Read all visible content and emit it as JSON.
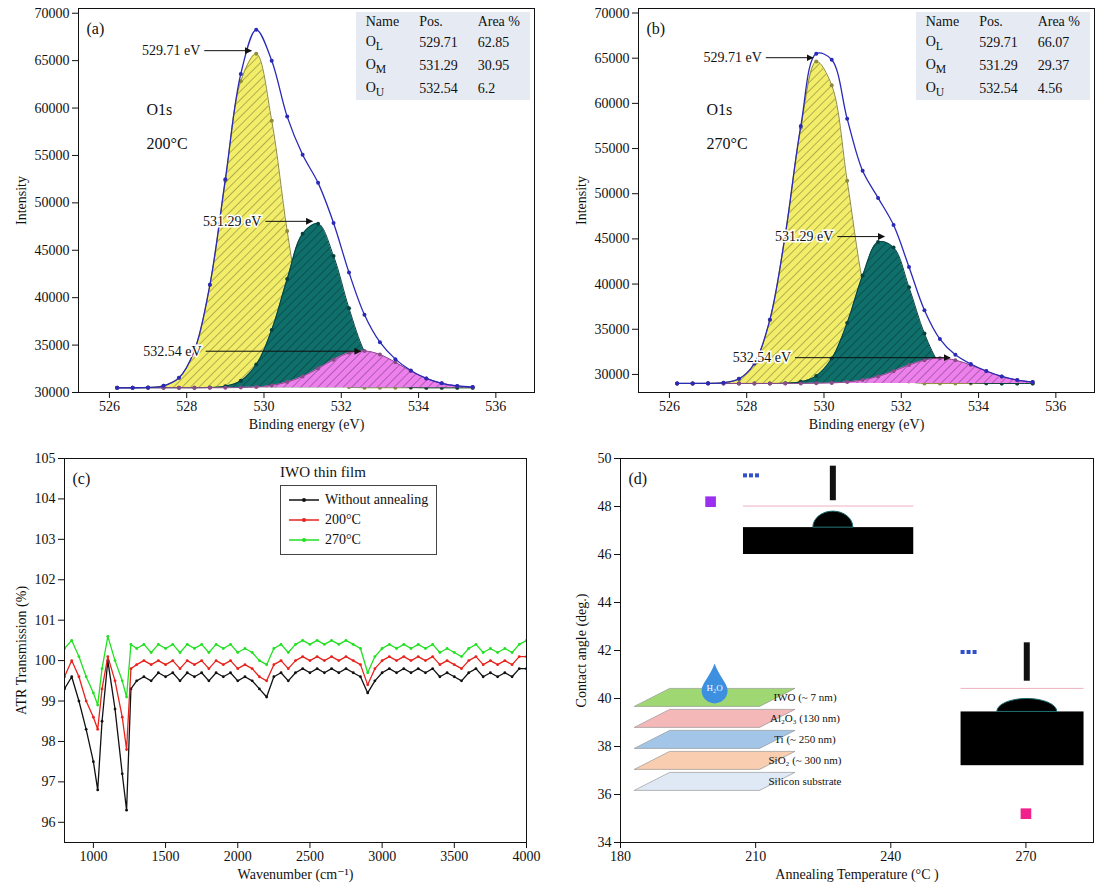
{
  "chart_data": [
    {
      "type": "area",
      "panel_label": "(a)",
      "labels": [
        "O1s",
        "200°C"
      ],
      "x_label": "Binding energy (eV)",
      "y_label": "Intensity",
      "xlim": [
        525.2,
        537
      ],
      "xticks": [
        526,
        528,
        530,
        532,
        534,
        536
      ],
      "ylim": [
        30000,
        70500
      ],
      "yticks": [
        30000,
        35000,
        40000,
        45000,
        50000,
        55000,
        60000,
        65000,
        70000
      ],
      "baseline": 30500,
      "x": [
        526.2,
        526.6,
        527.0,
        527.4,
        527.8,
        528.2,
        528.6,
        529.0,
        529.4,
        529.8,
        530.2,
        530.6,
        531.0,
        531.4,
        531.8,
        532.2,
        532.6,
        533.0,
        533.4,
        533.8,
        534.2,
        534.6,
        535.0,
        535.4
      ],
      "series": [
        {
          "name": "OL",
          "type": "area",
          "color": "#f3ee6a",
          "marker": "circle",
          "values": [
            30500,
            30500,
            30530,
            30710,
            31550,
            34440,
            41330,
            52330,
            62840,
            65720,
            58660,
            47040,
            37640,
            32760,
            31030,
            30590,
            30500,
            30500,
            30500,
            30500,
            30500,
            30500,
            30500,
            30500
          ]
        },
        {
          "name": "OM",
          "type": "area",
          "color": "#0f6f6b",
          "marker": "circle",
          "values": [
            30500,
            30500,
            30500,
            30500,
            30500,
            30500,
            30530,
            30670,
            31230,
            32940,
            36590,
            41960,
            46740,
            47810,
            44390,
            38880,
            34310,
            31800,
            30830,
            30560,
            30500,
            30500,
            30500,
            30500
          ]
        },
        {
          "name": "OU",
          "type": "area",
          "color": "#ee80ee",
          "marker": "circle",
          "values": [
            30500,
            30500,
            30500,
            30500,
            30500,
            30500,
            30500,
            30500,
            30530,
            30590,
            30750,
            31100,
            31690,
            32540,
            33460,
            34180,
            34390,
            34010,
            33190,
            32260,
            31480,
            30970,
            30690,
            30570
          ]
        },
        {
          "type": "line",
          "color": "#2a2ab8",
          "marker": "circle",
          "values": [
            30500,
            30500,
            30530,
            30710,
            31550,
            34440,
            41360,
            52500,
            63600,
            68250,
            65000,
            59100,
            55070,
            52110,
            47880,
            42650,
            38200,
            35310,
            33520,
            32320,
            31480,
            30970,
            30690,
            30570
          ]
        }
      ],
      "annotations": [
        {
          "text": "529.71 eV",
          "x": 529.71,
          "y": 66000
        },
        {
          "text": "531.29 eV",
          "x": 531.29,
          "y": 48000
        },
        {
          "text": "532.54 eV",
          "x": 532.54,
          "y": 34300
        }
      ],
      "table": {
        "columns": [
          "Name",
          "Pos.",
          "Area %"
        ],
        "rows": [
          [
            "OL",
            529.71,
            62.85
          ],
          [
            "OM",
            531.29,
            30.95
          ],
          [
            "OU",
            532.54,
            6.2
          ]
        ]
      }
    },
    {
      "type": "area",
      "panel_label": "(b)",
      "labels": [
        "O1s",
        "270°C"
      ],
      "x_label": "Binding energy (eV)",
      "y_label": "Intensity",
      "xlim": [
        525.2,
        537
      ],
      "xticks": [
        526,
        528,
        530,
        532,
        534,
        536
      ],
      "ylim": [
        28000,
        70500
      ],
      "yticks": [
        30000,
        35000,
        40000,
        45000,
        50000,
        55000,
        60000,
        65000,
        70000
      ],
      "baseline": 29000,
      "x": [
        526.2,
        526.6,
        527.0,
        527.4,
        527.8,
        528.2,
        528.6,
        529.0,
        529.4,
        529.8,
        530.2,
        530.6,
        531.0,
        531.4,
        531.8,
        532.2,
        532.6,
        533.0,
        533.4,
        533.8,
        534.2,
        534.6,
        535.0,
        535.4
      ],
      "series": [
        {
          "name": "OL",
          "type": "area",
          "color": "#f3ee6a",
          "marker": "circle",
          "values": [
            29000,
            29000,
            29010,
            29090,
            29510,
            31210,
            36060,
            45490,
            57300,
            64640,
            62010,
            51430,
            40200,
            33100,
            30110,
            29220,
            29000,
            29000,
            29000,
            29000,
            29000,
            29000,
            29000,
            29000
          ]
        },
        {
          "name": "OM",
          "type": "area",
          "color": "#0f6f6b",
          "marker": "circle",
          "values": [
            29000,
            29000,
            29000,
            29000,
            29000,
            29000,
            29000,
            29030,
            29190,
            29840,
            31760,
            35700,
            40950,
            44660,
            44060,
            39640,
            34520,
            31110,
            29590,
            29120,
            29020,
            29000,
            29000,
            29000
          ]
        },
        {
          "name": "OU",
          "type": "area",
          "color": "#ee80ee",
          "marker": "circle",
          "values": [
            29000,
            29000,
            29000,
            29000,
            29000,
            29000,
            29000,
            29000,
            29000,
            29020,
            29060,
            29160,
            29380,
            29780,
            30360,
            31030,
            31580,
            31800,
            31580,
            31030,
            30360,
            29780,
            29380,
            29160
          ]
        },
        {
          "type": "line",
          "color": "#2a2ab8",
          "marker": "circle",
          "values": [
            29000,
            29000,
            29010,
            29090,
            29510,
            31210,
            36060,
            45520,
            57490,
            65500,
            64830,
            58290,
            52530,
            49540,
            46530,
            41890,
            37100,
            33910,
            32170,
            31150,
            30380,
            29780,
            29380,
            29160
          ]
        }
      ],
      "annotations": [
        {
          "text": "529.71 eV",
          "x": 529.75,
          "y": 65000
        },
        {
          "text": "531.29 eV",
          "x": 531.6,
          "y": 45200
        },
        {
          "text": "532.54 eV",
          "x": 533.3,
          "y": 31800
        }
      ],
      "table": {
        "columns": [
          "Name",
          "Pos.",
          "Area %"
        ],
        "rows": [
          [
            "OL",
            529.71,
            66.07
          ],
          [
            "OM",
            531.29,
            29.37
          ],
          [
            "OU",
            532.54,
            4.56
          ]
        ]
      }
    },
    {
      "type": "line",
      "panel_label": "(c)",
      "legend_title": "IWO thin film",
      "legend": "top",
      "x_label": "Wavenumber (cm⁻¹)",
      "y_label": "ATR Transmission (%)",
      "xlim": [
        800,
        4000
      ],
      "xticks": [
        1000,
        1500,
        2000,
        2500,
        3000,
        3500,
        4000
      ],
      "ylim": [
        95.5,
        105
      ],
      "yticks": [
        96,
        97,
        98,
        99,
        100,
        101,
        102,
        103,
        104,
        105
      ],
      "x": [
        800,
        850,
        900,
        950,
        1000,
        1030,
        1060,
        1100,
        1150,
        1200,
        1230,
        1260,
        1300,
        1350,
        1400,
        1450,
        1500,
        1550,
        1600,
        1650,
        1700,
        1750,
        1800,
        1850,
        1900,
        1950,
        2000,
        2050,
        2100,
        2150,
        2200,
        2250,
        2300,
        2350,
        2400,
        2450,
        2500,
        2550,
        2600,
        2650,
        2700,
        2750,
        2800,
        2850,
        2900,
        2950,
        3000,
        3050,
        3100,
        3150,
        3200,
        3250,
        3300,
        3350,
        3400,
        3450,
        3500,
        3550,
        3600,
        3650,
        3700,
        3750,
        3800,
        3850,
        3900,
        3950,
        4000
      ],
      "series": [
        {
          "name": "Without annealing",
          "color": "#111111",
          "marker": "circle",
          "values": [
            99.3,
            99.6,
            99.0,
            98.3,
            97.5,
            96.8,
            98.5,
            100.0,
            98.8,
            97.2,
            96.3,
            99.3,
            99.5,
            99.6,
            99.5,
            99.7,
            99.6,
            99.7,
            99.5,
            99.7,
            99.6,
            99.7,
            99.5,
            99.7,
            99.6,
            99.7,
            99.5,
            99.6,
            99.5,
            99.3,
            99.1,
            99.6,
            99.7,
            99.5,
            99.7,
            99.8,
            99.7,
            99.8,
            99.7,
            99.8,
            99.7,
            99.8,
            99.7,
            99.6,
            99.2,
            99.5,
            99.7,
            99.8,
            99.7,
            99.8,
            99.7,
            99.8,
            99.7,
            99.8,
            99.6,
            99.7,
            99.6,
            99.5,
            99.7,
            99.8,
            99.6,
            99.7,
            99.6,
            99.7,
            99.6,
            99.8,
            99.8
          ]
        },
        {
          "name": "200°C",
          "color": "#e8221c",
          "marker": "circle",
          "values": [
            99.6,
            100.0,
            99.6,
            99.0,
            98.6,
            98.3,
            99.3,
            100.1,
            99.5,
            98.6,
            97.8,
            99.8,
            99.9,
            100.0,
            99.9,
            100.0,
            99.9,
            100.0,
            99.8,
            100.0,
            99.9,
            100.0,
            99.8,
            100.0,
            99.9,
            100.0,
            99.8,
            99.9,
            99.8,
            99.6,
            99.5,
            99.9,
            100.0,
            99.8,
            100.0,
            100.1,
            100.0,
            100.1,
            100.0,
            100.1,
            100.0,
            100.1,
            100.0,
            99.9,
            99.4,
            99.8,
            100.0,
            100.1,
            100.0,
            100.1,
            100.0,
            100.1,
            100.0,
            100.1,
            99.9,
            100.0,
            99.9,
            99.8,
            100.0,
            100.1,
            99.9,
            100.0,
            99.9,
            100.0,
            99.9,
            100.1,
            100.1
          ]
        },
        {
          "name": "270°C",
          "color": "#22e022",
          "marker": "circle",
          "values": [
            100.3,
            100.5,
            100.1,
            99.6,
            99.2,
            98.9,
            99.8,
            100.6,
            100.0,
            99.5,
            99.1,
            100.4,
            100.3,
            100.4,
            100.2,
            100.4,
            100.3,
            100.4,
            100.2,
            100.4,
            100.3,
            100.4,
            100.2,
            100.4,
            100.3,
            100.4,
            100.2,
            100.3,
            100.2,
            100.0,
            99.9,
            100.3,
            100.4,
            100.2,
            100.4,
            100.5,
            100.4,
            100.5,
            100.4,
            100.5,
            100.4,
            100.5,
            100.4,
            100.3,
            99.7,
            100.1,
            100.3,
            100.4,
            100.3,
            100.4,
            100.3,
            100.4,
            100.3,
            100.4,
            100.2,
            100.3,
            100.2,
            100.1,
            100.3,
            100.4,
            100.2,
            100.3,
            100.2,
            100.3,
            100.2,
            100.4,
            100.5
          ]
        }
      ]
    },
    {
      "type": "scatter",
      "panel_label": "(d)",
      "x_label": "Annealing Temperature (°C )",
      "y_label": "Contact angle (deg.)",
      "xlim": [
        180,
        285
      ],
      "xticks": [
        180,
        210,
        240,
        270
      ],
      "ylim": [
        34,
        50
      ],
      "yticks": [
        34,
        36,
        38,
        40,
        42,
        44,
        46,
        48,
        50
      ],
      "x": [
        200,
        270
      ],
      "values": [
        48.2,
        35.2
      ],
      "colors": [
        "#9b30f0",
        "#f0208c"
      ],
      "marker": "square",
      "inset": {
        "layers": [
          "IWO (~ 7 nm)",
          "Al₂O₃ (130 nm)",
          "Ti (~ 250 nm)",
          "SiO₂ (~ 300 nm)",
          "Silicon substrate"
        ],
        "drop_label": "H₂O"
      }
    }
  ]
}
